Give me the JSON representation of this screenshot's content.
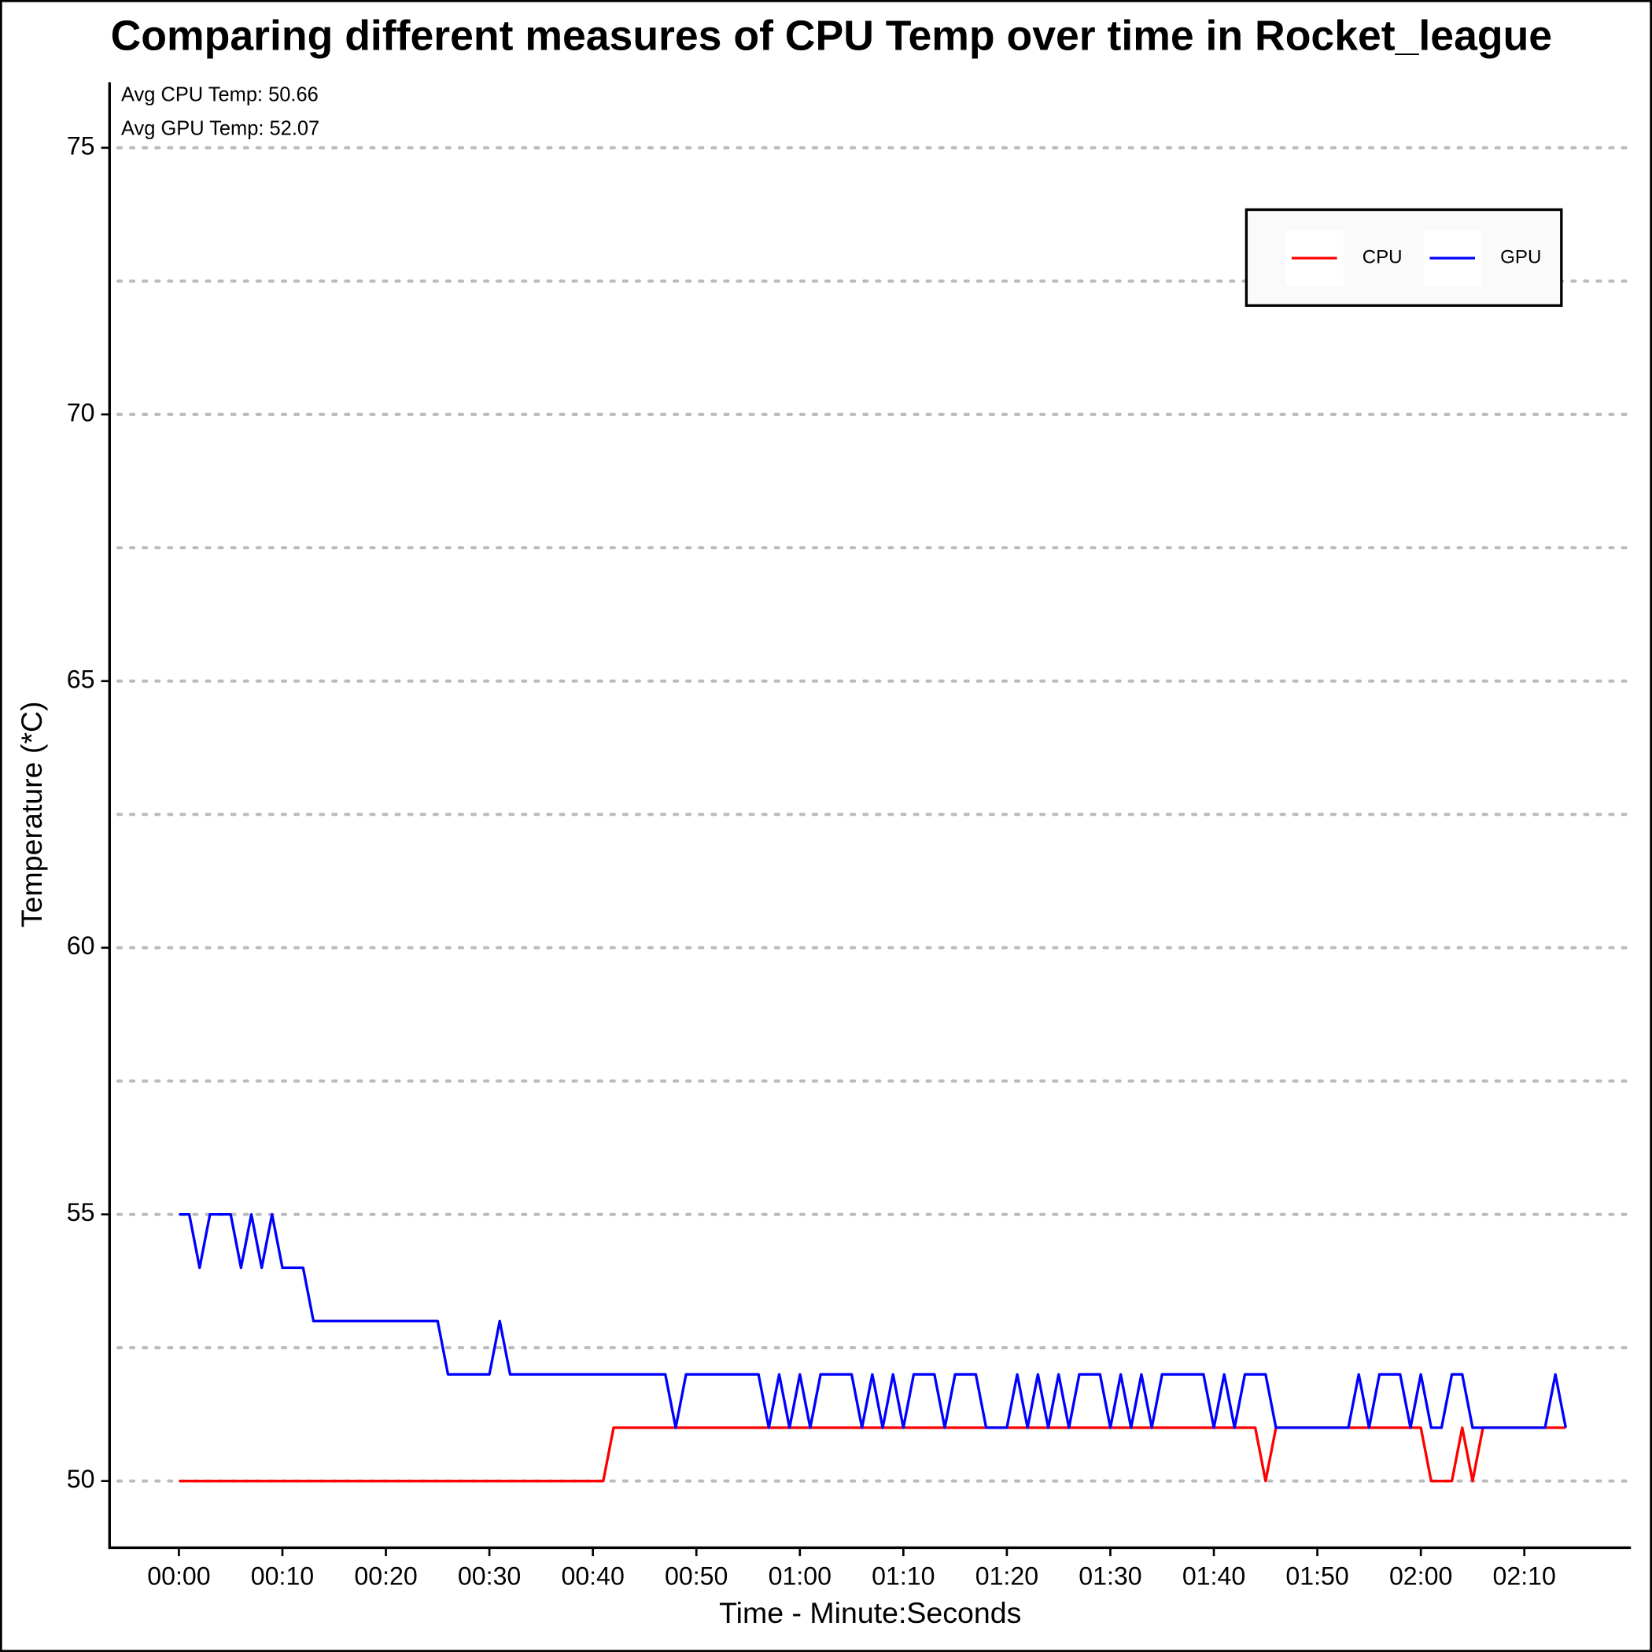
{
  "chart_data": {
    "type": "line",
    "title": "Comparing different measures of CPU Temp over time in Rocket_league",
    "annotations": [
      "Avg CPU Temp: 50.66",
      "Avg GPU Temp: 52.07"
    ],
    "x_label": "Time - Minute:Seconds",
    "y_label": "Temperature (*C)",
    "x": [
      0,
      1,
      2,
      3,
      4,
      5,
      6,
      7,
      8,
      9,
      10,
      11,
      12,
      13,
      14,
      15,
      16,
      17,
      18,
      19,
      20,
      21,
      22,
      23,
      24,
      25,
      26,
      27,
      28,
      29,
      30,
      31,
      32,
      33,
      34,
      35,
      36,
      37,
      38,
      39,
      40,
      41,
      42,
      43,
      44,
      45,
      46,
      47,
      48,
      49,
      50,
      51,
      52,
      53,
      54,
      55,
      56,
      57,
      58,
      59,
      60,
      61,
      62,
      63,
      64,
      65,
      66,
      67,
      68,
      69,
      70,
      71,
      72,
      73,
      74,
      75,
      76,
      77,
      78,
      79,
      80,
      81,
      82,
      83,
      84,
      85,
      86,
      87,
      88,
      89,
      90,
      91,
      92,
      93,
      94,
      95,
      96,
      97,
      98,
      99,
      100,
      101,
      102,
      103,
      104,
      105,
      106,
      107,
      108,
      109,
      110,
      111,
      112,
      113,
      114,
      115,
      116,
      117,
      118,
      119,
      120,
      121,
      122,
      123,
      124,
      125,
      126,
      127,
      128,
      129,
      130,
      131,
      132,
      133,
      134
    ],
    "series": [
      {
        "name": "CPU",
        "color": "#ff0000",
        "values": [
          50,
          50,
          50,
          50,
          50,
          50,
          50,
          50,
          50,
          50,
          50,
          50,
          50,
          50,
          50,
          50,
          50,
          50,
          50,
          50,
          50,
          50,
          50,
          50,
          50,
          50,
          50,
          50,
          50,
          50,
          50,
          50,
          50,
          50,
          50,
          50,
          50,
          50,
          50,
          50,
          50,
          50,
          51,
          51,
          51,
          51,
          51,
          51,
          51,
          51,
          51,
          51,
          51,
          51,
          51,
          51,
          51,
          51,
          51,
          51,
          51,
          51,
          51,
          51,
          51,
          51,
          51,
          51,
          51,
          51,
          51,
          51,
          51,
          51,
          51,
          51,
          51,
          51,
          51,
          51,
          51,
          51,
          51,
          51,
          51,
          51,
          51,
          51,
          51,
          51,
          51,
          51,
          51,
          51,
          51,
          51,
          51,
          51,
          51,
          51,
          51,
          51,
          51,
          51,
          51,
          50,
          51,
          51,
          51,
          51,
          51,
          51,
          51,
          51,
          51,
          51,
          51,
          51,
          51,
          51,
          51,
          50,
          50,
          50,
          51,
          50,
          51,
          51,
          51,
          51,
          51,
          51,
          51,
          51,
          51
        ]
      },
      {
        "name": "GPU",
        "color": "#0000ff",
        "values": [
          55,
          55,
          54,
          55,
          55,
          55,
          54,
          55,
          54,
          55,
          54,
          54,
          54,
          53,
          53,
          53,
          53,
          53,
          53,
          53,
          53,
          53,
          53,
          53,
          53,
          53,
          52,
          52,
          52,
          52,
          52,
          53,
          52,
          52,
          52,
          52,
          52,
          52,
          52,
          52,
          52,
          52,
          52,
          52,
          52,
          52,
          52,
          52,
          51,
          52,
          52,
          52,
          52,
          52,
          52,
          52,
          52,
          51,
          52,
          51,
          52,
          51,
          52,
          52,
          52,
          52,
          51,
          52,
          51,
          52,
          51,
          52,
          52,
          52,
          51,
          52,
          52,
          52,
          51,
          51,
          51,
          52,
          51,
          52,
          51,
          52,
          51,
          52,
          52,
          52,
          51,
          52,
          51,
          52,
          51,
          52,
          52,
          52,
          52,
          52,
          51,
          52,
          51,
          52,
          52,
          52,
          51,
          51,
          51,
          51,
          51,
          51,
          51,
          51,
          52,
          51,
          52,
          52,
          52,
          51,
          52,
          51,
          51,
          52,
          52,
          51,
          51,
          51,
          51,
          51,
          51,
          51,
          51,
          52,
          51
        ]
      }
    ],
    "xlim": [
      -6.7,
      140.3
    ],
    "xticks": [
      {
        "value": 0,
        "label": "00:00"
      },
      {
        "value": 10,
        "label": "00:10"
      },
      {
        "value": 20,
        "label": "00:20"
      },
      {
        "value": 30,
        "label": "00:30"
      },
      {
        "value": 40,
        "label": "00:40"
      },
      {
        "value": 50,
        "label": "00:50"
      },
      {
        "value": 60,
        "label": "01:00"
      },
      {
        "value": 70,
        "label": "01:10"
      },
      {
        "value": 80,
        "label": "01:20"
      },
      {
        "value": 90,
        "label": "01:30"
      },
      {
        "value": 100,
        "label": "01:40"
      },
      {
        "value": 110,
        "label": "01:50"
      },
      {
        "value": 120,
        "label": "02:00"
      },
      {
        "value": 130,
        "label": "02:10"
      }
    ],
    "ylim": [
      48.75,
      76.23
    ],
    "yticks": [
      50,
      55,
      60,
      65,
      70,
      75
    ],
    "minor_grid": [
      52.5,
      57.5,
      62.5,
      67.5,
      72.5
    ],
    "grid": true,
    "legend": "top-right"
  }
}
